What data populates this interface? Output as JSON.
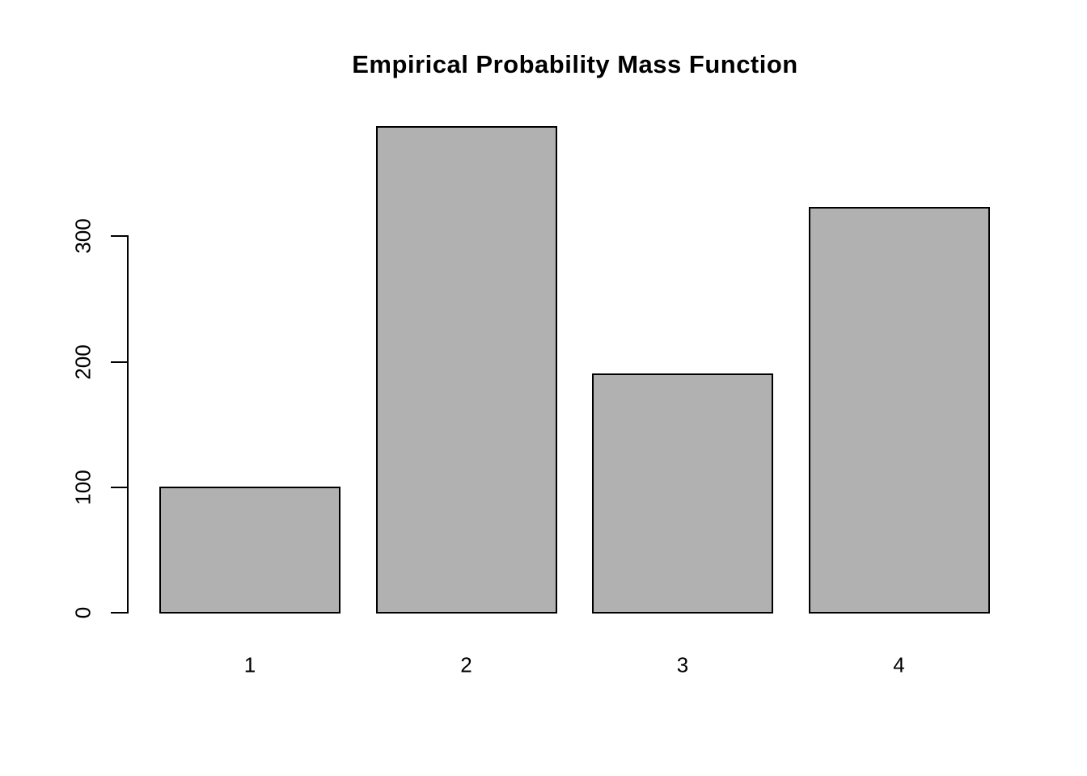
{
  "chart_data": {
    "type": "bar",
    "title": "Empirical Probability Mass Function",
    "categories": [
      "1",
      "2",
      "3",
      "4"
    ],
    "values": [
      100,
      387,
      190,
      323
    ],
    "xlabel": "",
    "ylabel": "",
    "yticks": [
      0,
      100,
      200,
      300
    ],
    "ylim": [
      0,
      390
    ],
    "grid": false,
    "legend": false,
    "bar_fill": "#b1b1b1",
    "bar_border": "#000000",
    "axis_color": "#000000",
    "background": "#ffffff",
    "title_color": "#000000"
  }
}
